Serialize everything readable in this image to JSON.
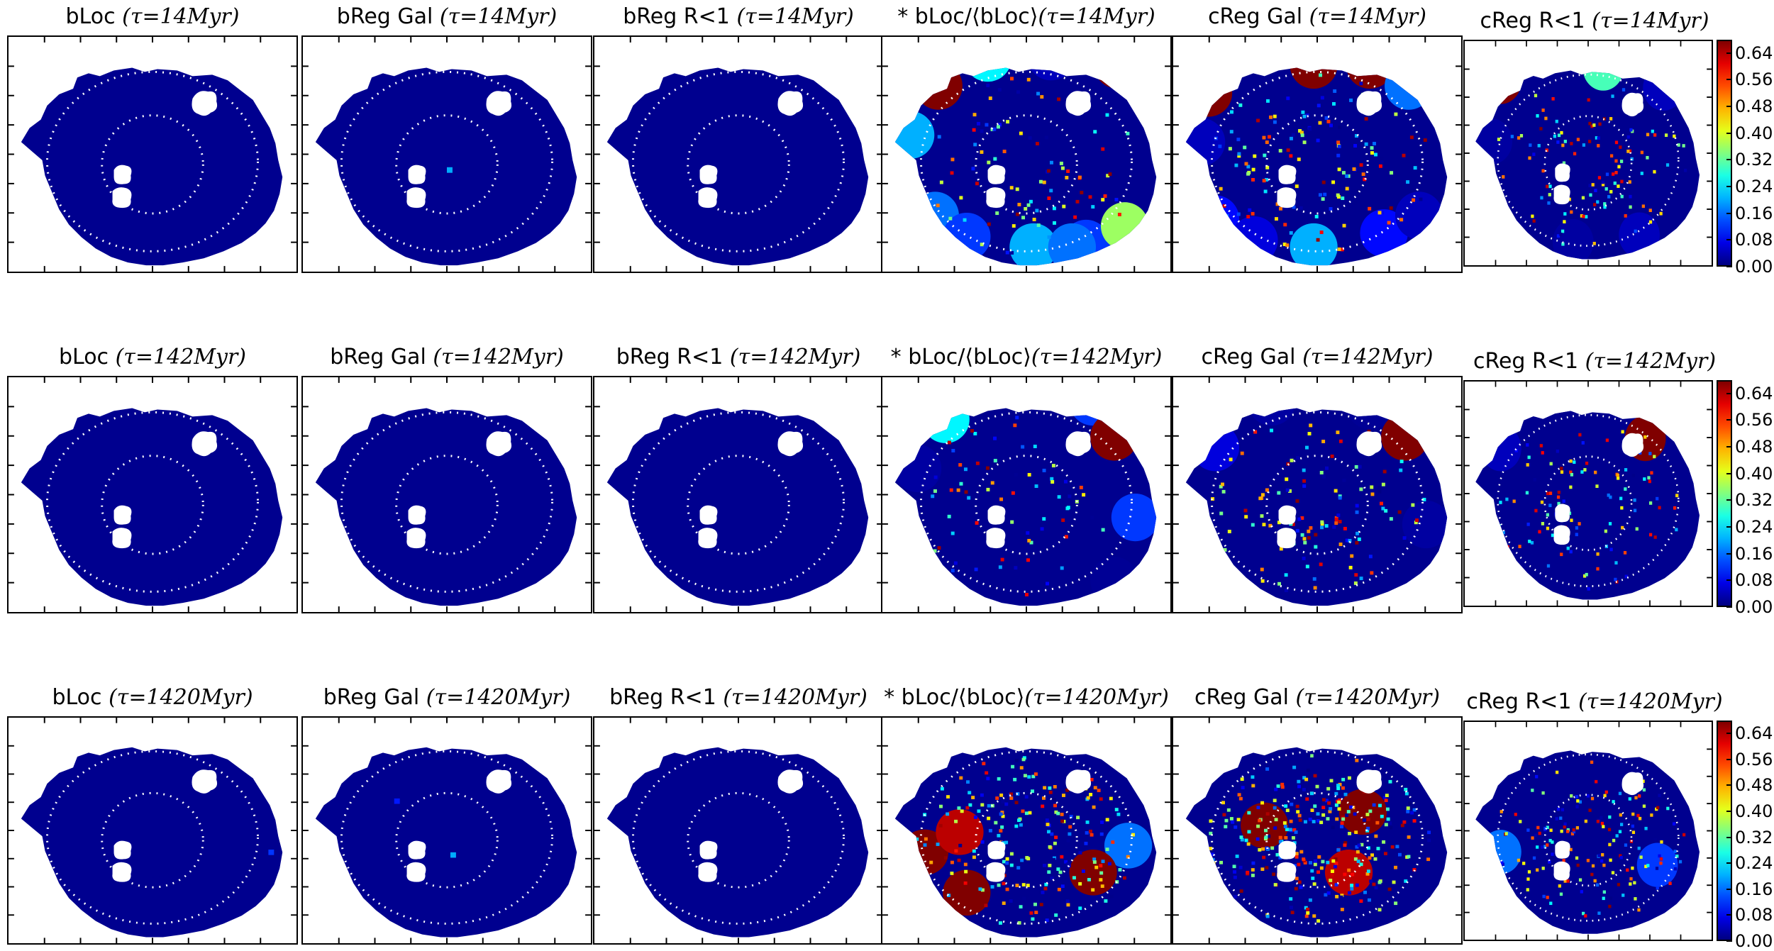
{
  "colorbar": {
    "ticks": [
      "0.64",
      "0.56",
      "0.48",
      "0.40",
      "0.32",
      "0.24",
      "0.16",
      "0.08",
      "0.00"
    ],
    "range": [
      0,
      0.68
    ],
    "colormap": "jet"
  },
  "colors": {
    "background": "#00008f",
    "hole": "#ffffff",
    "ring": "#ffffff"
  },
  "rows": [
    {
      "tau": "(τ=14Myr)",
      "panels": [
        {
          "label": "bLoc",
          "tau": "(τ=14Myr)"
        },
        {
          "label": "bReg Gal",
          "tau": "(τ=14Myr)"
        },
        {
          "label": "bReg R<1",
          "tau": "(τ=14Myr)"
        },
        {
          "label": "* bLoc/⟨bLoc⟩",
          "tau": "(τ=14Myr)"
        },
        {
          "label": "cReg Gal",
          "tau": "(τ=14Myr)"
        },
        {
          "label": "cReg R<1",
          "tau": "(τ=14Myr)"
        }
      ]
    },
    {
      "tau": "(τ=142Myr)",
      "panels": [
        {
          "label": "bLoc",
          "tau": "(τ=142Myr)"
        },
        {
          "label": "bReg Gal",
          "tau": "(τ=142Myr)"
        },
        {
          "label": "bReg R<1",
          "tau": "(τ=142Myr)"
        },
        {
          "label": "* bLoc/⟨bLoc⟩",
          "tau": "(τ=142Myr)"
        },
        {
          "label": "cReg Gal",
          "tau": "(τ=142Myr)"
        },
        {
          "label": "cReg R<1",
          "tau": "(τ=142Myr)"
        }
      ]
    },
    {
      "tau": "(τ=1420Myr)",
      "panels": [
        {
          "label": "bLoc",
          "tau": "(τ=1420Myr)"
        },
        {
          "label": "bReg Gal",
          "tau": "(τ=1420Myr)"
        },
        {
          "label": "bReg R<1",
          "tau": "(τ=1420Myr)"
        },
        {
          "label": "* bLoc/⟨bLoc⟩",
          "tau": "(τ=1420Myr)"
        },
        {
          "label": "cReg Gal",
          "tau": "(τ=1420Myr)"
        },
        {
          "label": "cReg R<1",
          "tau": "(τ=1420Myr)"
        }
      ]
    }
  ]
}
